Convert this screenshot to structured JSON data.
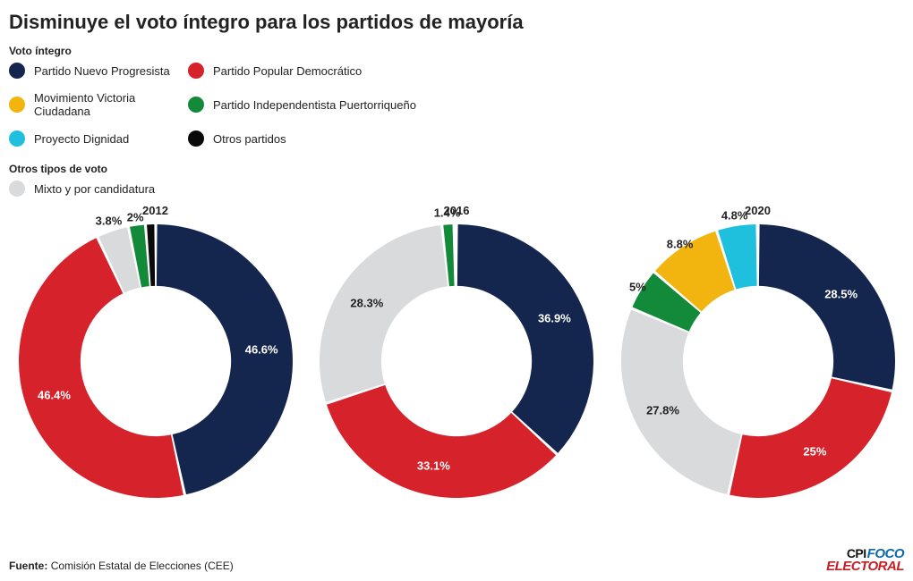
{
  "title": "Disminuye el voto íntegro para los partidos de mayoría",
  "legend_integro_label": "Voto íntegro",
  "legend_otros_label": "Otros tipos de voto",
  "legend": [
    {
      "label": "Partido Nuevo Progresista",
      "color": "#14264e"
    },
    {
      "label": "Partido Popular Democrático",
      "color": "#d6222a"
    },
    {
      "label": "Movimiento Victoria Ciudadana",
      "color": "#f2b50f"
    },
    {
      "label": "Partido Independentista Puertorriqueño",
      "color": "#13893a"
    },
    {
      "label": "Proyecto Dignidad",
      "color": "#1fc0dd"
    },
    {
      "label": "Otros partidos",
      "color": "#0a0a0a"
    }
  ],
  "legend_mixto": {
    "label": "Mixto y por candidatura",
    "color": "#d9dadb"
  },
  "donut": {
    "size": 310,
    "inner_ratio": 0.55,
    "gap_deg": 1.2,
    "label_fontsize": 13,
    "year_fontsize": 13,
    "start_angle_deg": -90,
    "label_radius_ratio": 0.78
  },
  "charts": [
    {
      "year": "2012",
      "slices": [
        {
          "key": "pnp",
          "value": 46.6,
          "color": "#14264e",
          "label": "46.6%",
          "show": true,
          "text_color": "#ffffff"
        },
        {
          "key": "ppd",
          "value": 46.4,
          "color": "#d6222a",
          "label": "46.4%",
          "show": true,
          "text_color": "#ffffff"
        },
        {
          "key": "mixto",
          "value": 3.8,
          "color": "#d9dadb",
          "label": "3.8%",
          "show": true,
          "text_color": "#222",
          "label_radius_ratio": 1.08
        },
        {
          "key": "pip",
          "value": 2.0,
          "color": "#13893a",
          "label": "2%",
          "show": true,
          "text_color": "#222",
          "label_radius_ratio": 1.06
        },
        {
          "key": "otros",
          "value": 1.2,
          "color": "#0a0a0a",
          "label": "",
          "show": false
        }
      ]
    },
    {
      "year": "2016",
      "slices": [
        {
          "key": "pnp",
          "value": 36.9,
          "color": "#14264e",
          "label": "36.9%",
          "show": true,
          "text_color": "#ffffff"
        },
        {
          "key": "ppd",
          "value": 33.1,
          "color": "#d6222a",
          "label": "33.1%",
          "show": true,
          "text_color": "#ffffff"
        },
        {
          "key": "mixto",
          "value": 28.3,
          "color": "#d9dadb",
          "label": "28.3%",
          "show": true,
          "text_color": "#222"
        },
        {
          "key": "pip",
          "value": 1.4,
          "color": "#13893a",
          "label": "1.4%",
          "show": true,
          "text_color": "#222",
          "label_radius_ratio": 1.09
        },
        {
          "key": "otros",
          "value": 0.3,
          "color": "#0a0a0a",
          "label": "",
          "show": false
        }
      ]
    },
    {
      "year": "2020",
      "slices": [
        {
          "key": "pnp",
          "value": 28.5,
          "color": "#14264e",
          "label": "28.5%",
          "show": true,
          "text_color": "#ffffff"
        },
        {
          "key": "ppd",
          "value": 25.0,
          "color": "#d6222a",
          "label": "25%",
          "show": true,
          "text_color": "#ffffff"
        },
        {
          "key": "mixto",
          "value": 27.8,
          "color": "#d9dadb",
          "label": "27.8%",
          "show": true,
          "text_color": "#222"
        },
        {
          "key": "pip",
          "value": 5.0,
          "color": "#13893a",
          "label": "5%",
          "show": true,
          "text_color": "#222",
          "label_radius_ratio": 1.03
        },
        {
          "key": "mvc",
          "value": 8.8,
          "color": "#f2b50f",
          "label": "8.8%",
          "show": true,
          "text_color": "#222",
          "label_radius_ratio": 1.03
        },
        {
          "key": "pd",
          "value": 4.8,
          "color": "#1fc0dd",
          "label": "4.8%",
          "show": true,
          "text_color": "#222",
          "label_radius_ratio": 1.08
        },
        {
          "key": "otros",
          "value": 0.1,
          "color": "#0a0a0a",
          "label": "",
          "show": false
        }
      ]
    }
  ],
  "source_prefix": "Fuente:",
  "source_text": "Comisión Estatal de Elecciones (CEE)",
  "logo": {
    "cpi": "CPI",
    "foco": "FOCO",
    "electoral": "ELECTORAL"
  }
}
